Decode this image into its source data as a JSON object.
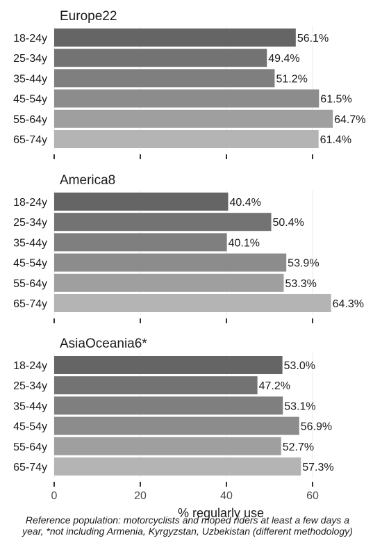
{
  "chart_data": [
    {
      "type": "bar",
      "orientation": "horizontal",
      "title": "Europe22",
      "categories": [
        "18-24y",
        "25-34y",
        "35-44y",
        "45-54y",
        "55-64y",
        "65-74y"
      ],
      "values": [
        56.1,
        49.4,
        51.2,
        61.5,
        64.7,
        61.4
      ],
      "value_labels": [
        "56.1%",
        "49.4%",
        "51.2%",
        "61.5%",
        "64.7%",
        "61.4%"
      ],
      "xlim": [
        0,
        65
      ],
      "grid": true
    },
    {
      "type": "bar",
      "orientation": "horizontal",
      "title": "America8",
      "categories": [
        "18-24y",
        "25-34y",
        "35-44y",
        "45-54y",
        "55-64y",
        "65-74y"
      ],
      "values": [
        40.4,
        50.4,
        40.1,
        53.9,
        53.3,
        64.3
      ],
      "value_labels": [
        "40.4%",
        "50.4%",
        "40.1%",
        "53.9%",
        "53.3%",
        "64.3%"
      ],
      "xlim": [
        0,
        65
      ],
      "grid": true
    },
    {
      "type": "bar",
      "orientation": "horizontal",
      "title": "AsiaOceania6*",
      "categories": [
        "18-24y",
        "25-34y",
        "35-44y",
        "45-54y",
        "55-64y",
        "65-74y"
      ],
      "values": [
        53.0,
        47.2,
        53.1,
        56.9,
        52.7,
        57.3
      ],
      "value_labels": [
        "53.0%",
        "47.2%",
        "53.1%",
        "56.9%",
        "52.7%",
        "57.3%"
      ],
      "xlim": [
        0,
        65
      ],
      "grid": true
    }
  ],
  "axis": {
    "ticks": [
      0,
      20,
      40,
      60
    ],
    "tick_labels": [
      "0",
      "20",
      "40",
      "60"
    ],
    "xlabel": "% regularly use"
  },
  "colors": {
    "bars": [
      "#656565",
      "#737373",
      "#7f7f7f",
      "#8c8c8c",
      "#9f9f9f",
      "#b4b4b4"
    ],
    "grid": "#ebebeb",
    "text": "#1a1a1a"
  },
  "footnote": "Reference population: motorcyclists and moped riders at least a few days a year, *not including Armenia, Kyrgyzstan, Uzbekistan (different methodology)"
}
